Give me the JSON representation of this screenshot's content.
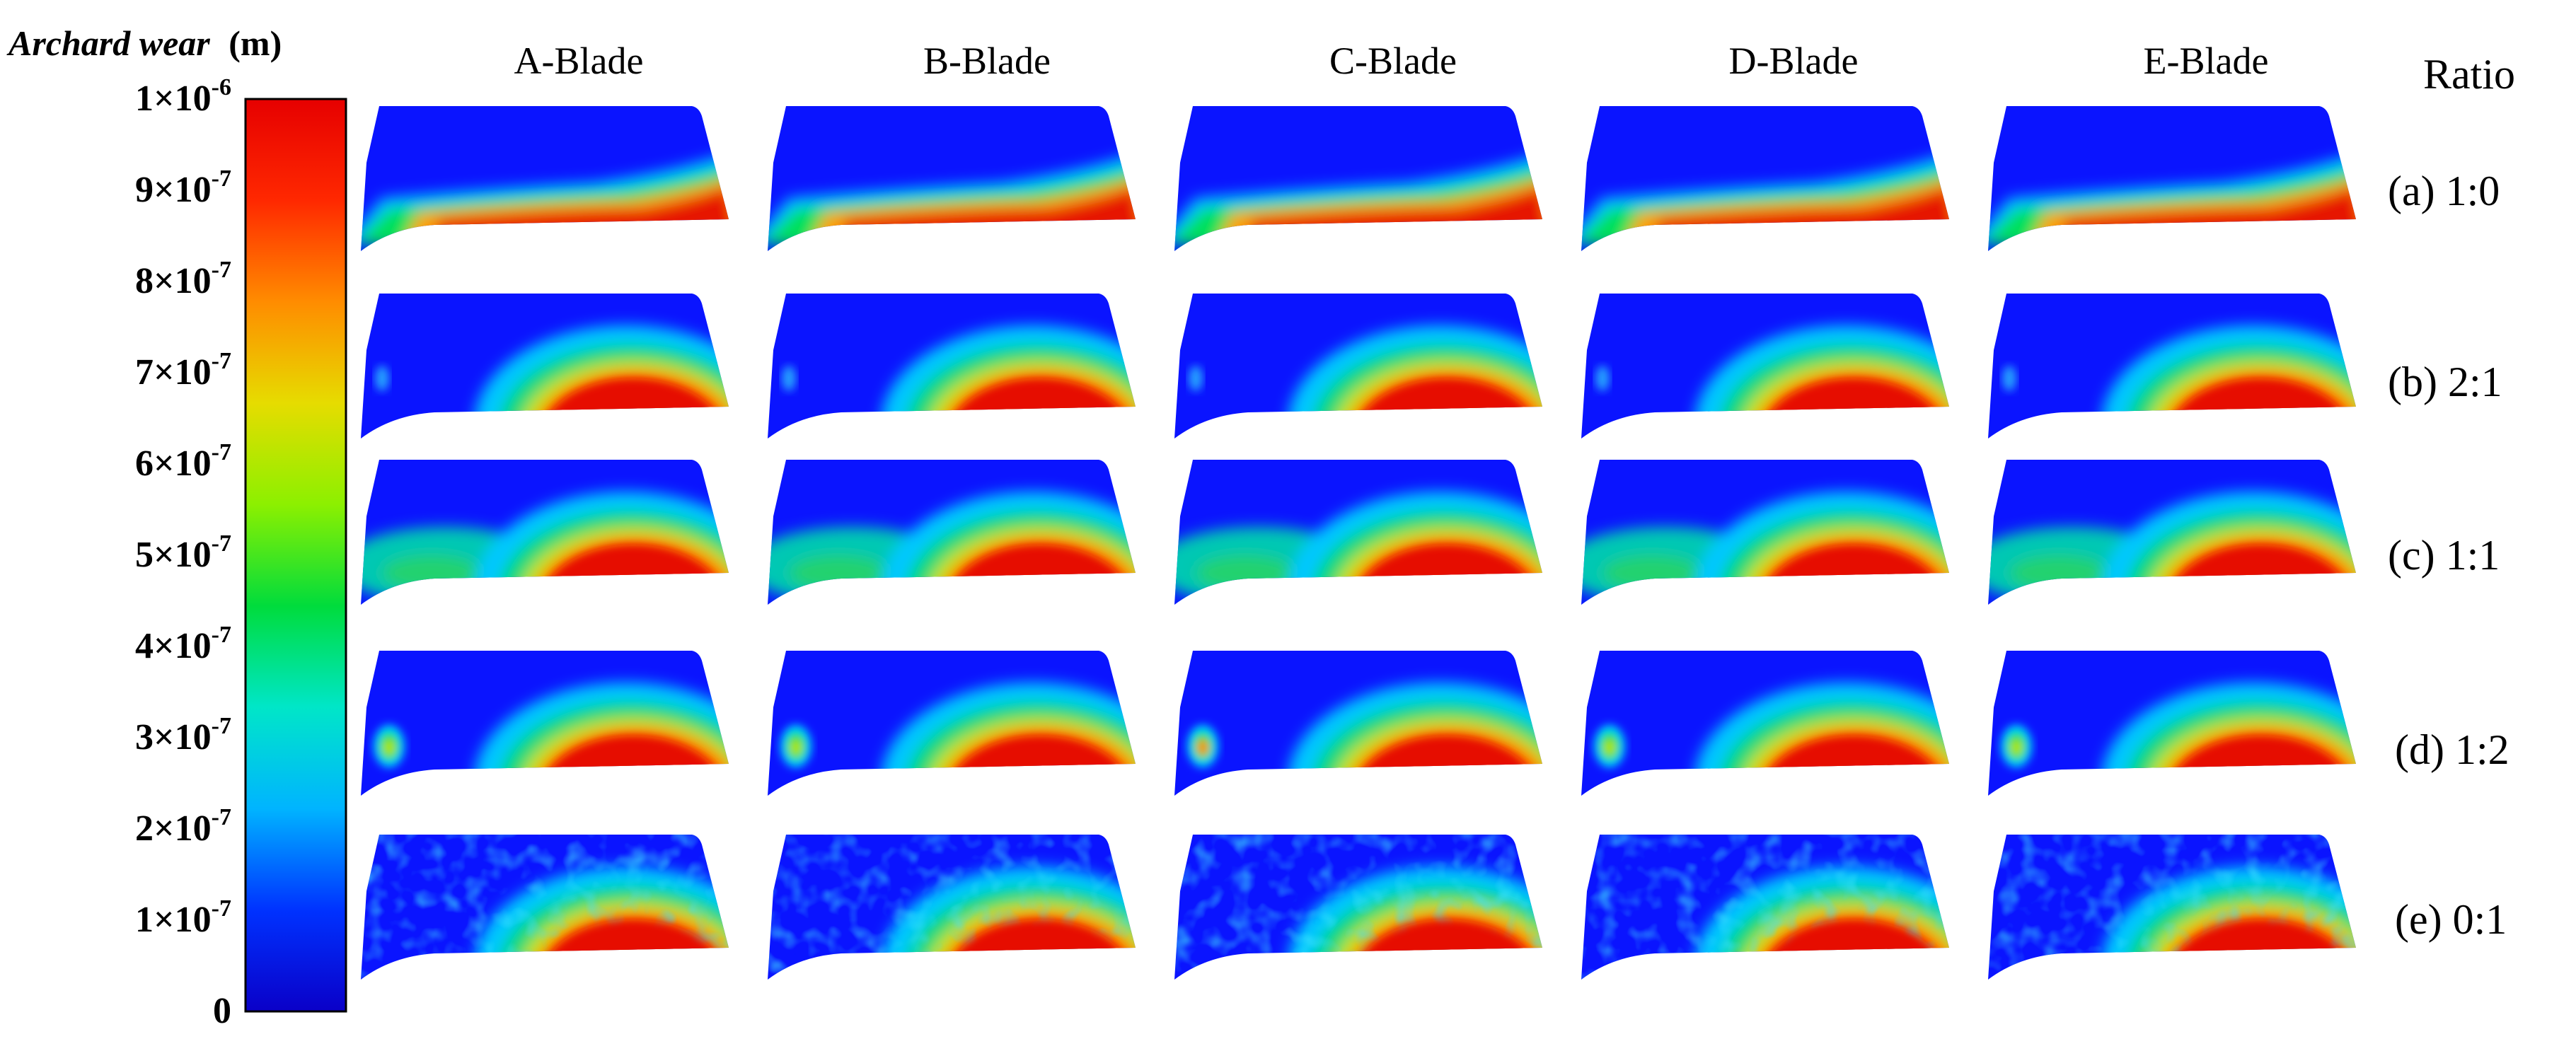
{
  "legend": {
    "title": "Archard wear",
    "unit": "(m)",
    "ticks": [
      {
        "label": "1×10",
        "exp": "-6",
        "value": 1e-06
      },
      {
        "label": "9×10",
        "exp": "-7",
        "value": 9e-07
      },
      {
        "label": "8×10",
        "exp": "-7",
        "value": 8e-07
      },
      {
        "label": "7×10",
        "exp": "-7",
        "value": 7e-07
      },
      {
        "label": "6×10",
        "exp": "-7",
        "value": 6e-07
      },
      {
        "label": "5×10",
        "exp": "-7",
        "value": 5e-07
      },
      {
        "label": "4×10",
        "exp": "-7",
        "value": 4e-07
      },
      {
        "label": "3×10",
        "exp": "-7",
        "value": 3e-07
      },
      {
        "label": "2×10",
        "exp": "-7",
        "value": 2e-07
      },
      {
        "label": "1×10",
        "exp": "-7",
        "value": 1e-07
      },
      {
        "label": "0",
        "exp": "",
        "value": 0
      }
    ],
    "colormap": [
      "#0a00c8",
      "#0032ff",
      "#00b4ff",
      "#00e6c8",
      "#00dc3c",
      "#8cf000",
      "#e6dc00",
      "#ff8c00",
      "#ff2800",
      "#e60000"
    ]
  },
  "columns": [
    "A-Blade",
    "B-Blade",
    "C-Blade",
    "D-Blade",
    "E-Blade"
  ],
  "rows_header": "Ratio",
  "rows": [
    {
      "label": "(a) 1:0",
      "pattern": "band"
    },
    {
      "label": "(b) 2:1",
      "pattern": "dome"
    },
    {
      "label": "(c) 1:1",
      "pattern": "dome-wide"
    },
    {
      "label": "(d) 1:2",
      "pattern": "dome-spot"
    },
    {
      "label": "(e) 0:1",
      "pattern": "dome-noisy"
    }
  ]
}
